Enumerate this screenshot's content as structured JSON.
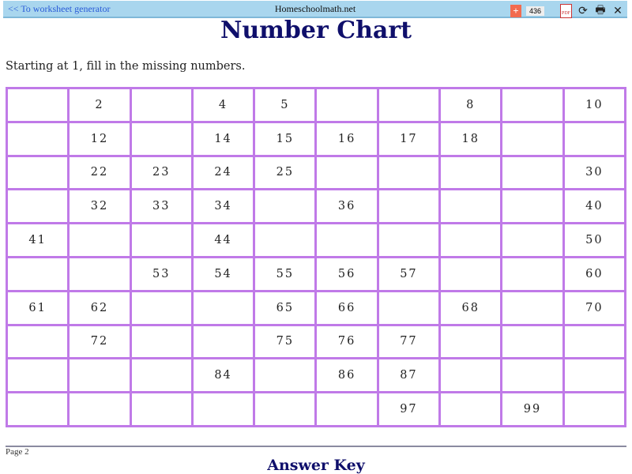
{
  "topbar": {
    "back_link": "<< To worksheet generator",
    "site": "Homeschoolmath.net",
    "count": "436",
    "plus": "+",
    "pdf": "PDF",
    "refresh": "⟳",
    "print": "🖶",
    "close": "✕"
  },
  "title": "Number Chart",
  "instructions": "Starting at 1, fill in the missing numbers.",
  "grid": [
    [
      "",
      "2",
      "",
      "4",
      "5",
      "",
      "",
      "8",
      "",
      "10"
    ],
    [
      "",
      "12",
      "",
      "14",
      "15",
      "16",
      "17",
      "18",
      "",
      ""
    ],
    [
      "",
      "22",
      "23",
      "24",
      "25",
      "",
      "",
      "",
      "",
      "30"
    ],
    [
      "",
      "32",
      "33",
      "34",
      "",
      "36",
      "",
      "",
      "",
      "40"
    ],
    [
      "41",
      "",
      "",
      "44",
      "",
      "",
      "",
      "",
      "",
      "50"
    ],
    [
      "",
      "",
      "53",
      "54",
      "55",
      "56",
      "57",
      "",
      "",
      "60"
    ],
    [
      "61",
      "62",
      "",
      "",
      "65",
      "66",
      "",
      "68",
      "",
      "70"
    ],
    [
      "",
      "72",
      "",
      "",
      "75",
      "76",
      "77",
      "",
      "",
      ""
    ],
    [
      "",
      "",
      "",
      "84",
      "",
      "86",
      "87",
      "",
      "",
      ""
    ],
    [
      "",
      "",
      "",
      "",
      "",
      "",
      "97",
      "",
      "99",
      ""
    ]
  ],
  "footer": {
    "page": "Page 2",
    "answer_key": "Answer Key"
  },
  "colors": {
    "grid_border": "#c07ae8",
    "title": "#0f0f6b",
    "toolbar": "#a9d6ee"
  }
}
